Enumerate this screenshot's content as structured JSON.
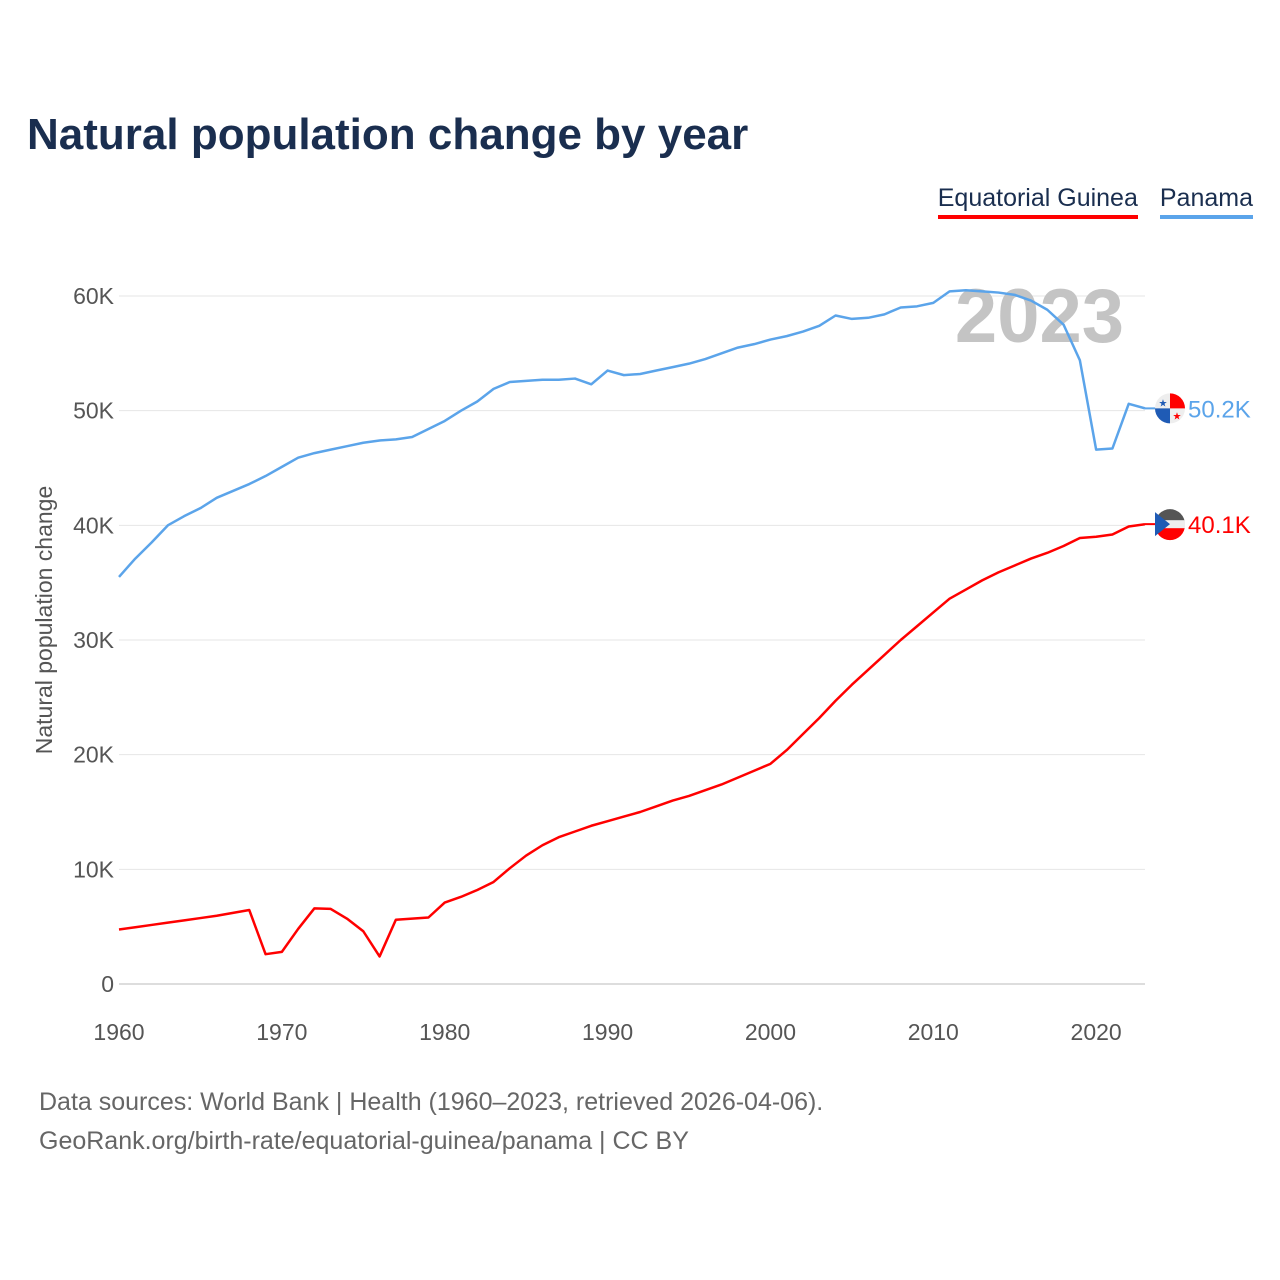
{
  "chart_data": {
    "type": "line",
    "title": "Natural population change by year",
    "xlabel": "",
    "ylabel": "Natural population change",
    "xlim": [
      1960,
      2023
    ],
    "ylim": [
      0,
      60000
    ],
    "x_ticks": [
      "1960",
      "1970",
      "1980",
      "1990",
      "2000",
      "2010",
      "2020"
    ],
    "y_ticks": [
      "0",
      "10K",
      "20K",
      "30K",
      "40K",
      "50K",
      "60K"
    ],
    "grid": true,
    "legend_position": "top-right",
    "year_watermark": "2023",
    "x": [
      1960,
      1961,
      1962,
      1963,
      1964,
      1965,
      1966,
      1967,
      1968,
      1969,
      1970,
      1971,
      1972,
      1973,
      1974,
      1975,
      1976,
      1977,
      1978,
      1979,
      1980,
      1981,
      1982,
      1983,
      1984,
      1985,
      1986,
      1987,
      1988,
      1989,
      1990,
      1991,
      1992,
      1993,
      1994,
      1995,
      1996,
      1997,
      1998,
      1999,
      2000,
      2001,
      2002,
      2003,
      2004,
      2005,
      2006,
      2007,
      2008,
      2009,
      2010,
      2011,
      2012,
      2013,
      2014,
      2015,
      2016,
      2017,
      2018,
      2019,
      2020,
      2021,
      2022,
      2023
    ],
    "series": [
      {
        "name": "Equatorial Guinea",
        "color": "#ff0000",
        "end_label": "40.1K",
        "values": [
          4750,
          4950,
          5150,
          5350,
          5550,
          5750,
          5950,
          6200,
          6450,
          2600,
          2800,
          4800,
          6600,
          6550,
          5700,
          4600,
          2400,
          5600,
          5700,
          5800,
          7100,
          7600,
          8200,
          8900,
          10100,
          11200,
          12100,
          12800,
          13300,
          13800,
          14200,
          14600,
          15000,
          15500,
          16000,
          16400,
          16900,
          17400,
          18000,
          18600,
          19200,
          20400,
          21800,
          23200,
          24700,
          26100,
          27400,
          28700,
          30000,
          31200,
          32400,
          33600,
          34400,
          35200,
          35900,
          36500,
          37100,
          37600,
          38200,
          38900,
          39000,
          39200,
          39900,
          40100
        ]
      },
      {
        "name": "Panama",
        "color": "#5ba4ea",
        "end_label": "50.2K",
        "values": [
          35500,
          37100,
          38500,
          40000,
          40800,
          41500,
          42400,
          43000,
          43600,
          44300,
          45100,
          45900,
          46300,
          46600,
          46900,
          47200,
          47400,
          47500,
          47700,
          48400,
          49100,
          50000,
          50800,
          51900,
          52500,
          52600,
          52700,
          52700,
          52800,
          52300,
          53500,
          53100,
          53200,
          53500,
          53800,
          54100,
          54500,
          55000,
          55500,
          55800,
          56200,
          56500,
          56900,
          57400,
          58300,
          58000,
          58100,
          58400,
          59000,
          59100,
          59400,
          60400,
          60500,
          60400,
          60300,
          60100,
          59600,
          58800,
          57500,
          54400,
          46600,
          46700,
          50600,
          50200
        ]
      }
    ]
  },
  "footer": {
    "line1": "Data sources: World Bank | Health (1960–2023, retrieved 2026-04-06).",
    "line2": "GeoRank.org/birth-rate/equatorial-guinea/panama | CC BY"
  }
}
